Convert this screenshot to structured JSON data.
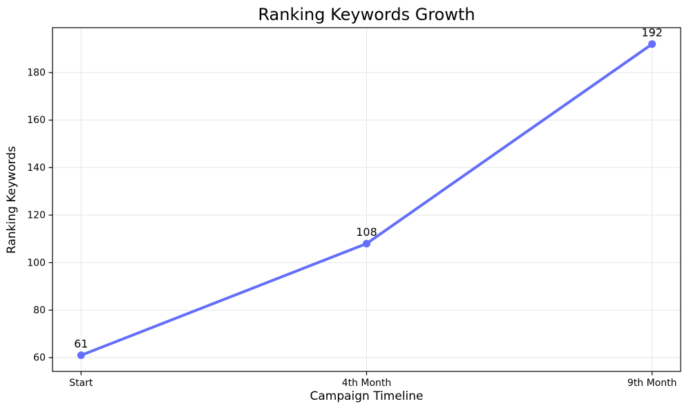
{
  "chart_data": {
    "type": "line",
    "title": "Ranking Keywords Growth",
    "xlabel": "Campaign Timeline",
    "ylabel": "Ranking Keywords",
    "categories": [
      "Start",
      "4th Month",
      "9th Month"
    ],
    "values": [
      61,
      108,
      192
    ],
    "point_labels": [
      "61",
      "108",
      "192"
    ],
    "series_name": "Ranking Keywords",
    "yticks": [
      60,
      80,
      100,
      120,
      140,
      160,
      180
    ],
    "ylim": [
      54.2,
      198.9
    ],
    "xlim": [
      -0.1,
      2.1
    ],
    "grid": true,
    "legend": "none",
    "line_color": "#636EFA",
    "marker": "circle",
    "grid_color": "#e5e5e5",
    "axis_color": "#000000",
    "text_color": "#000000",
    "background": "#ffffff"
  }
}
